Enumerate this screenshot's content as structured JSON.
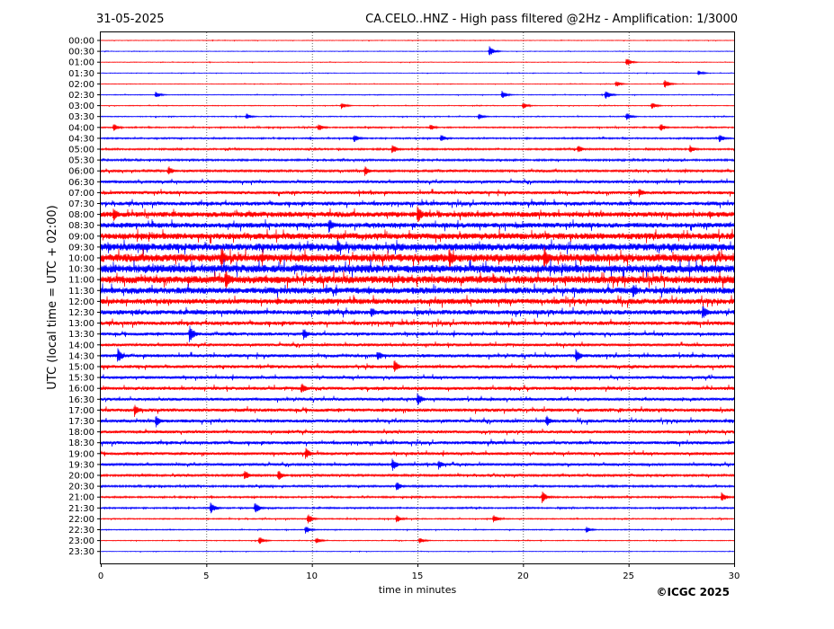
{
  "header": {
    "date": "31-05-2025",
    "title": "CA.CELO..HNZ - High pass filtered @2Hz - Amplification: 1/3000"
  },
  "footer": {
    "copyright": "©ICGC 2025"
  },
  "colors": {
    "red_trace": "#ff0000",
    "blue_trace": "#0000ff",
    "axis": "#000000",
    "grid": "#000000",
    "background": "#ffffff"
  },
  "chart_data": {
    "type": "line",
    "title": "CA.CELO..HNZ - High pass filtered @2Hz - Amplification: 1/3000",
    "xlabel": "time in minutes",
    "ylabel": "UTC (local time = UTC + 02:00)",
    "xlim": [
      0,
      30
    ],
    "x_ticks": [
      "0",
      "5",
      "10",
      "15",
      "20",
      "25",
      "30"
    ],
    "x_tick_values": [
      0,
      5,
      10,
      15,
      20,
      25,
      30
    ],
    "grid": "vertical dotted lines at each x tick",
    "row_labels": [
      "00:00",
      "00:30",
      "01:00",
      "01:30",
      "02:00",
      "02:30",
      "03:00",
      "03:30",
      "04:00",
      "04:30",
      "05:00",
      "05:30",
      "06:00",
      "06:30",
      "07:00",
      "07:30",
      "08:00",
      "08:30",
      "09:00",
      "09:30",
      "10:00",
      "10:30",
      "11:00",
      "11:30",
      "12:00",
      "12:30",
      "13:00",
      "13:30",
      "14:00",
      "14:30",
      "15:00",
      "15:30",
      "16:00",
      "16:30",
      "17:00",
      "17:30",
      "18:00",
      "18:30",
      "19:00",
      "19:30",
      "20:00",
      "20:30",
      "21:00",
      "21:30",
      "22:00",
      "22:30",
      "23:00",
      "23:30"
    ],
    "row_colors": [
      "red",
      "blue",
      "red",
      "blue",
      "red",
      "blue",
      "red",
      "blue",
      "red",
      "blue",
      "red",
      "blue",
      "red",
      "blue",
      "red",
      "blue",
      "red",
      "blue",
      "red",
      "blue",
      "red",
      "blue",
      "red",
      "blue",
      "red",
      "blue",
      "red",
      "blue",
      "red",
      "blue",
      "red",
      "blue",
      "red",
      "blue",
      "red",
      "blue",
      "red",
      "blue",
      "red",
      "blue",
      "red",
      "blue",
      "red",
      "blue",
      "red",
      "blue",
      "red",
      "blue"
    ],
    "noise_level": [
      0.3,
      0.3,
      0.3,
      0.3,
      0.3,
      0.4,
      0.4,
      0.5,
      0.7,
      0.8,
      0.9,
      1.0,
      1.2,
      1.6,
      1.8,
      2.2,
      3.0,
      2.8,
      3.5,
      4.0,
      4.5,
      4.5,
      4.2,
      3.5,
      3.0,
      2.6,
      2.2,
      1.8,
      1.6,
      1.8,
      1.8,
      1.6,
      1.8,
      1.6,
      1.9,
      1.8,
      1.6,
      1.8,
      1.6,
      1.4,
      1.2,
      1.0,
      0.9,
      0.8,
      0.6,
      0.5,
      0.4,
      0.3
    ],
    "events": [
      {
        "row": "00:30",
        "minute": 18.4,
        "amplitude": 6
      },
      {
        "row": "01:00",
        "minute": 24.9,
        "amplitude": 5
      },
      {
        "row": "01:30",
        "minute": 28.3,
        "amplitude": 3
      },
      {
        "row": "02:00",
        "minute": 24.4,
        "amplitude": 4
      },
      {
        "row": "02:00",
        "minute": 26.7,
        "amplitude": 5
      },
      {
        "row": "02:30",
        "minute": 2.6,
        "amplitude": 4
      },
      {
        "row": "02:30",
        "minute": 19.0,
        "amplitude": 5
      },
      {
        "row": "02:30",
        "minute": 23.9,
        "amplitude": 6
      },
      {
        "row": "03:00",
        "minute": 11.4,
        "amplitude": 4
      },
      {
        "row": "03:00",
        "minute": 20.0,
        "amplitude": 4
      },
      {
        "row": "03:00",
        "minute": 26.1,
        "amplitude": 4
      },
      {
        "row": "03:30",
        "minute": 6.9,
        "amplitude": 4
      },
      {
        "row": "03:30",
        "minute": 17.9,
        "amplitude": 4
      },
      {
        "row": "03:30",
        "minute": 24.9,
        "amplitude": 5
      },
      {
        "row": "04:00",
        "minute": 0.6,
        "amplitude": 5
      },
      {
        "row": "04:00",
        "minute": 10.3,
        "amplitude": 5
      },
      {
        "row": "04:00",
        "minute": 15.6,
        "amplitude": 4
      },
      {
        "row": "04:00",
        "minute": 26.5,
        "amplitude": 5
      },
      {
        "row": "04:30",
        "minute": 12.0,
        "amplitude": 5
      },
      {
        "row": "04:30",
        "minute": 16.1,
        "amplitude": 5
      },
      {
        "row": "04:30",
        "minute": 29.3,
        "amplitude": 5
      },
      {
        "row": "05:00",
        "minute": 13.8,
        "amplitude": 6
      },
      {
        "row": "05:00",
        "minute": 22.6,
        "amplitude": 5
      },
      {
        "row": "05:00",
        "minute": 27.9,
        "amplitude": 5
      },
      {
        "row": "06:00",
        "minute": 3.2,
        "amplitude": 6
      },
      {
        "row": "06:00",
        "minute": 12.5,
        "amplitude": 6
      },
      {
        "row": "07:00",
        "minute": 25.5,
        "amplitude": 6
      },
      {
        "row": "08:00",
        "minute": 0.6,
        "amplitude": 9
      },
      {
        "row": "08:00",
        "minute": 15.0,
        "amplitude": 11
      },
      {
        "row": "08:30",
        "minute": 10.8,
        "amplitude": 9
      },
      {
        "row": "09:30",
        "minute": 11.2,
        "amplitude": 9
      },
      {
        "row": "10:00",
        "minute": 5.7,
        "amplitude": 14
      },
      {
        "row": "10:00",
        "minute": 16.5,
        "amplitude": 13
      },
      {
        "row": "10:00",
        "minute": 21.0,
        "amplitude": 14
      },
      {
        "row": "11:00",
        "minute": 5.9,
        "amplitude": 13
      },
      {
        "row": "11:30",
        "minute": 25.2,
        "amplitude": 9
      },
      {
        "row": "12:30",
        "minute": 12.8,
        "amplitude": 7
      },
      {
        "row": "12:30",
        "minute": 28.5,
        "amplitude": 9
      },
      {
        "row": "13:30",
        "minute": 4.2,
        "amplitude": 11
      },
      {
        "row": "13:30",
        "minute": 9.6,
        "amplitude": 8
      },
      {
        "row": "14:30",
        "minute": 0.8,
        "amplitude": 9
      },
      {
        "row": "14:30",
        "minute": 13.1,
        "amplitude": 7
      },
      {
        "row": "14:30",
        "minute": 22.5,
        "amplitude": 9
      },
      {
        "row": "15:00",
        "minute": 13.9,
        "amplitude": 8
      },
      {
        "row": "16:00",
        "minute": 9.5,
        "amplitude": 7
      },
      {
        "row": "16:30",
        "minute": 15.0,
        "amplitude": 8
      },
      {
        "row": "17:00",
        "minute": 1.6,
        "amplitude": 8
      },
      {
        "row": "17:30",
        "minute": 2.6,
        "amplitude": 8
      },
      {
        "row": "17:30",
        "minute": 21.1,
        "amplitude": 7
      },
      {
        "row": "19:00",
        "minute": 9.7,
        "amplitude": 7
      },
      {
        "row": "19:30",
        "minute": 13.8,
        "amplitude": 8
      },
      {
        "row": "19:30",
        "minute": 16.0,
        "amplitude": 6
      },
      {
        "row": "20:00",
        "minute": 6.8,
        "amplitude": 7
      },
      {
        "row": "20:00",
        "minute": 8.4,
        "amplitude": 7
      },
      {
        "row": "20:30",
        "minute": 14.0,
        "amplitude": 6
      },
      {
        "row": "21:00",
        "minute": 20.9,
        "amplitude": 7
      },
      {
        "row": "21:00",
        "minute": 29.4,
        "amplitude": 6
      },
      {
        "row": "21:30",
        "minute": 5.2,
        "amplitude": 7
      },
      {
        "row": "21:30",
        "minute": 7.3,
        "amplitude": 7
      },
      {
        "row": "22:00",
        "minute": 9.8,
        "amplitude": 6
      },
      {
        "row": "22:00",
        "minute": 14.0,
        "amplitude": 5
      },
      {
        "row": "22:00",
        "minute": 18.6,
        "amplitude": 5
      },
      {
        "row": "22:30",
        "minute": 9.7,
        "amplitude": 5
      },
      {
        "row": "22:30",
        "minute": 23.0,
        "amplitude": 4
      },
      {
        "row": "23:00",
        "minute": 7.5,
        "amplitude": 5
      },
      {
        "row": "23:00",
        "minute": 10.2,
        "amplitude": 4
      },
      {
        "row": "23:00",
        "minute": 15.1,
        "amplitude": 4
      }
    ]
  }
}
